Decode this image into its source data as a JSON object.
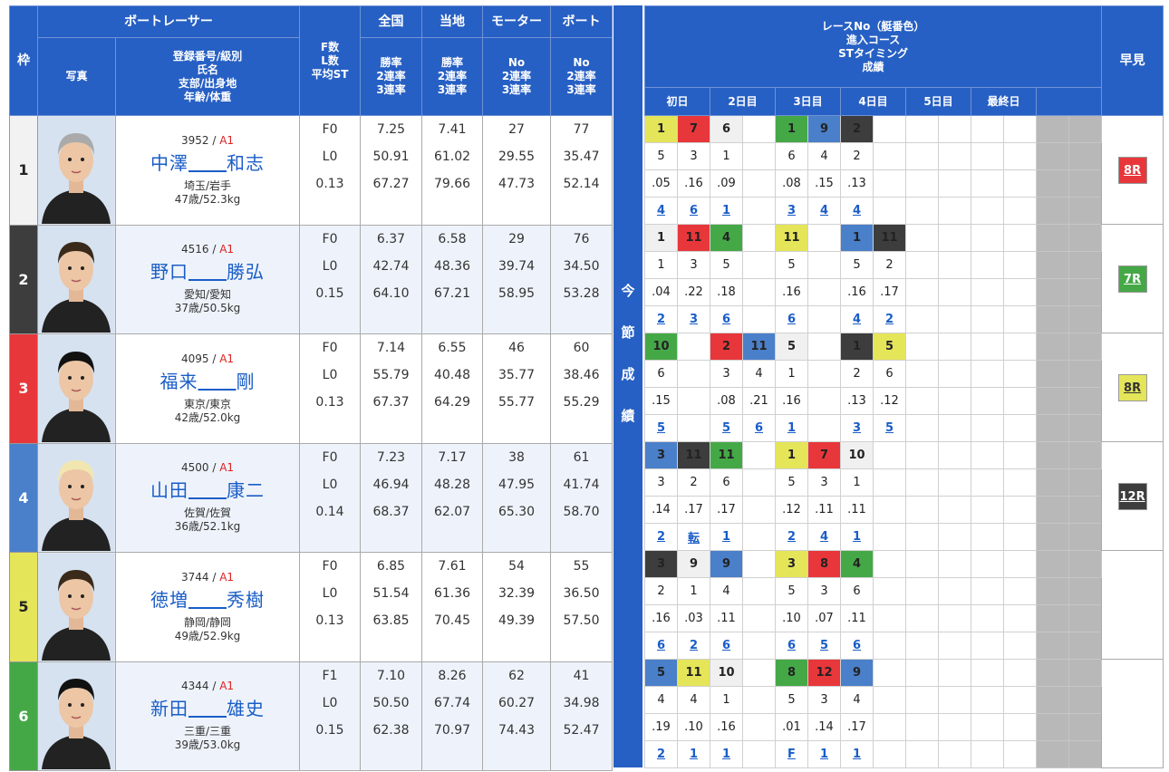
{
  "headers": {
    "waku": "枠",
    "racer": "ボートレーサー",
    "photo": "写真",
    "info_lines": [
      "登録番号/級別",
      "氏名",
      "支部/出身地",
      "年齢/体重"
    ],
    "fl_lines": [
      "F数",
      "L数",
      "平均ST"
    ],
    "zenkoku": "全国",
    "touchi": "当地",
    "motor": "モーター",
    "boat": "ボート",
    "rate_lines": [
      "勝率",
      "2連率",
      "3連率"
    ],
    "no_lines": [
      "No",
      "2連率",
      "3連率"
    ],
    "race_lines": [
      "レースNo（艇番色）",
      "進入コース",
      "STタイミング",
      "成績"
    ],
    "days": [
      "初日",
      "2日目",
      "3日目",
      "4日目",
      "5日目",
      "最終日"
    ],
    "hayami": "早見",
    "side_label": "今\n節\n成\n績"
  },
  "racers": [
    {
      "waku": "1",
      "reg": "3952",
      "cls": "A1",
      "name_sei": "中澤",
      "name_mei": "和志",
      "branch": "埼玉/岩手",
      "age_weight": "47歳/52.3kg",
      "f": "F0",
      "l": "L0",
      "st": "0.13",
      "zenkoku": [
        "7.25",
        "50.91",
        "67.27"
      ],
      "touchi": [
        "7.41",
        "61.02",
        "79.66"
      ],
      "motor": [
        "27",
        "29.55",
        "47.73"
      ],
      "boat": [
        "77",
        "35.47",
        "52.14"
      ],
      "races": [
        {
          "r": "1",
          "c": "5"
        },
        {
          "r": "7",
          "c": "3"
        },
        {
          "r": "6",
          "c": "1"
        },
        {
          "r": "",
          "c": ""
        },
        {
          "r": "1",
          "c": "6"
        },
        {
          "r": "9",
          "c": "4"
        },
        {
          "r": "2",
          "c": "2"
        }
      ],
      "rows": {
        "course": [
          "5",
          "3",
          "1",
          "",
          "6",
          "4",
          "2"
        ],
        "st": [
          ".05",
          ".16",
          ".09",
          "",
          ".08",
          ".15",
          ".13"
        ],
        "result": [
          "4",
          "6",
          "1",
          "",
          "3",
          "4",
          "4"
        ]
      },
      "race_colors": [
        "c5",
        "c3",
        "c1",
        "",
        "c6",
        "c4",
        "c2"
      ],
      "hayami": "8R",
      "hayami_color": "bg3"
    },
    {
      "waku": "2",
      "reg": "4516",
      "cls": "A1",
      "name_sei": "野口",
      "name_mei": "勝弘",
      "branch": "愛知/愛知",
      "age_weight": "37歳/50.5kg",
      "f": "F0",
      "l": "L0",
      "st": "0.15",
      "zenkoku": [
        "6.37",
        "42.74",
        "64.10"
      ],
      "touchi": [
        "6.58",
        "48.36",
        "67.21"
      ],
      "motor": [
        "29",
        "39.74",
        "58.95"
      ],
      "boat": [
        "76",
        "34.50",
        "53.28"
      ],
      "races": [
        {
          "r": "1"
        },
        {
          "r": "11"
        },
        {
          "r": "4"
        },
        {
          "r": ""
        },
        {
          "r": "11"
        },
        {
          "r": ""
        },
        {
          "r": "1"
        },
        {
          "r": "11"
        }
      ],
      "rows": {
        "course": [
          "1",
          "3",
          "5",
          "",
          "5",
          "",
          "5",
          "2"
        ],
        "st": [
          ".04",
          ".22",
          ".18",
          "",
          ".16",
          "",
          ".16",
          ".17"
        ],
        "result": [
          "2",
          "3",
          "6",
          "",
          "6",
          "",
          "4",
          "2"
        ]
      },
      "race_colors": [
        "c1",
        "c3",
        "c6",
        "",
        "c5",
        "",
        "c4",
        "c2"
      ],
      "hayami": "7R",
      "hayami_color": "bg6"
    },
    {
      "waku": "3",
      "reg": "4095",
      "cls": "A1",
      "name_sei": "福来",
      "name_mei": "剛",
      "branch": "東京/東京",
      "age_weight": "42歳/52.0kg",
      "f": "F0",
      "l": "L0",
      "st": "0.13",
      "zenkoku": [
        "7.14",
        "55.79",
        "67.37"
      ],
      "touchi": [
        "6.55",
        "40.48",
        "64.29"
      ],
      "motor": [
        "46",
        "35.77",
        "55.77"
      ],
      "boat": [
        "60",
        "38.46",
        "55.29"
      ],
      "races": [
        {
          "r": "10"
        },
        {
          "r": ""
        },
        {
          "r": "2"
        },
        {
          "r": "11"
        },
        {
          "r": "5"
        },
        {
          "r": ""
        },
        {
          "r": "1"
        },
        {
          "r": "5"
        }
      ],
      "rows": {
        "course": [
          "6",
          "",
          "3",
          "4",
          "1",
          "",
          "2",
          "6"
        ],
        "st": [
          ".15",
          "",
          ".08",
          ".21",
          ".16",
          "",
          ".13",
          ".12"
        ],
        "result": [
          "5",
          "",
          "5",
          "6",
          "1",
          "",
          "3",
          "5"
        ]
      },
      "race_colors": [
        "c6",
        "",
        "c3",
        "c4",
        "c1",
        "",
        "c2",
        "c5"
      ],
      "hayami": "8R",
      "hayami_color": "bg5"
    },
    {
      "waku": "4",
      "reg": "4500",
      "cls": "A1",
      "name_sei": "山田",
      "name_mei": "康二",
      "branch": "佐賀/佐賀",
      "age_weight": "36歳/52.1kg",
      "f": "F0",
      "l": "L0",
      "st": "0.14",
      "zenkoku": [
        "7.23",
        "46.94",
        "68.37"
      ],
      "touchi": [
        "7.17",
        "48.28",
        "62.07"
      ],
      "motor": [
        "38",
        "47.95",
        "65.30"
      ],
      "boat": [
        "61",
        "41.74",
        "58.70"
      ],
      "races": [
        {
          "r": "3"
        },
        {
          "r": "11"
        },
        {
          "r": "11"
        },
        {
          "r": ""
        },
        {
          "r": "1"
        },
        {
          "r": "7"
        },
        {
          "r": "10"
        }
      ],
      "rows": {
        "course": [
          "3",
          "2",
          "6",
          "",
          "5",
          "3",
          "1"
        ],
        "st": [
          ".14",
          ".17",
          ".17",
          "",
          ".12",
          ".11",
          ".11"
        ],
        "result": [
          "2",
          "転",
          "1",
          "",
          "2",
          "4",
          "1"
        ]
      },
      "race_colors": [
        "c4",
        "c2",
        "c6",
        "",
        "c5",
        "c3",
        "c1"
      ],
      "hayami": "12R",
      "hayami_color": "bg2"
    },
    {
      "waku": "5",
      "reg": "3744",
      "cls": "A1",
      "name_sei": "徳増",
      "name_mei": "秀樹",
      "branch": "静岡/静岡",
      "age_weight": "49歳/52.9kg",
      "f": "F0",
      "l": "L0",
      "st": "0.13",
      "zenkoku": [
        "6.85",
        "51.54",
        "63.85"
      ],
      "touchi": [
        "7.61",
        "61.36",
        "70.45"
      ],
      "motor": [
        "54",
        "32.39",
        "49.39"
      ],
      "boat": [
        "55",
        "36.50",
        "57.50"
      ],
      "races": [
        {
          "r": "3"
        },
        {
          "r": "9"
        },
        {
          "r": "9"
        },
        {
          "r": ""
        },
        {
          "r": "3"
        },
        {
          "r": "8"
        },
        {
          "r": "4"
        }
      ],
      "rows": {
        "course": [
          "2",
          "1",
          "4",
          "",
          "5",
          "3",
          "6"
        ],
        "st": [
          ".16",
          ".03",
          ".11",
          "",
          ".10",
          ".07",
          ".11"
        ],
        "result": [
          "6",
          "2",
          "6",
          "",
          "6",
          "5",
          "6"
        ]
      },
      "race_colors": [
        "c2",
        "c1",
        "c4",
        "",
        "c5",
        "c3",
        "c6"
      ],
      "hayami": "",
      "hayami_color": ""
    },
    {
      "waku": "6",
      "reg": "4344",
      "cls": "A1",
      "name_sei": "新田",
      "name_mei": "雄史",
      "branch": "三重/三重",
      "age_weight": "39歳/53.0kg",
      "f": "F1",
      "l": "L0",
      "st": "0.15",
      "zenkoku": [
        "7.10",
        "50.50",
        "62.38"
      ],
      "touchi": [
        "8.26",
        "67.74",
        "70.97"
      ],
      "motor": [
        "62",
        "60.27",
        "74.43"
      ],
      "boat": [
        "41",
        "34.98",
        "52.47"
      ],
      "races": [
        {
          "r": "5"
        },
        {
          "r": "11"
        },
        {
          "r": "10"
        },
        {
          "r": ""
        },
        {
          "r": "8"
        },
        {
          "r": "12"
        },
        {
          "r": "9"
        }
      ],
      "rows": {
        "course": [
          "4",
          "4",
          "1",
          "",
          "5",
          "3",
          "4"
        ],
        "st": [
          ".19",
          ".10",
          ".16",
          "",
          ".01",
          ".14",
          ".17"
        ],
        "result": [
          "2",
          "1",
          "1",
          "",
          "F",
          "1",
          "1"
        ]
      },
      "race_colors": [
        "c4",
        "c5",
        "c1",
        "",
        "c6",
        "c3",
        "c4"
      ],
      "hayami": "",
      "hayami_color": ""
    }
  ]
}
